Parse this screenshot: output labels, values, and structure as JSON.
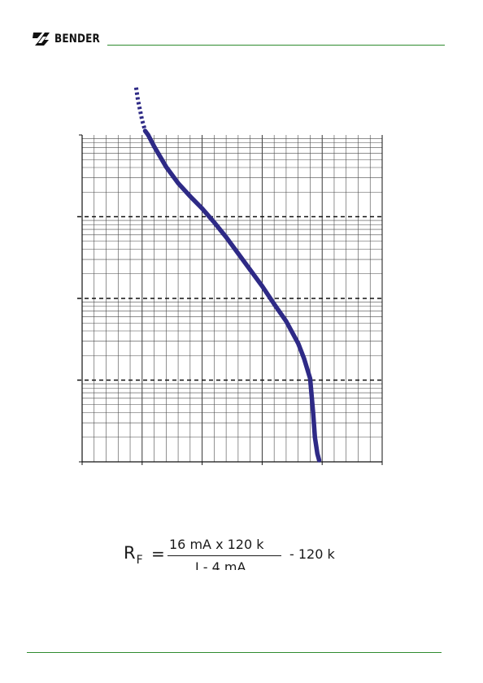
{
  "header": {
    "brand_name": "BENDER",
    "logo_icon": "bender-logo-icon",
    "rule_color": "#2e8b2e"
  },
  "chart_data": {
    "type": "line",
    "title": "",
    "xlabel": "",
    "ylabel": "",
    "x_scale": "linear",
    "y_scale": "log",
    "y_decades": 4,
    "x_major_ticks": 5,
    "grid": true,
    "dashed_decade_lines": true,
    "series": [
      {
        "color": "#2e2a86",
        "dotted_x_below": 1.15,
        "x": [
          0.9,
          0.93,
          1.0,
          1.05,
          1.1,
          1.2,
          1.4,
          1.6,
          1.8,
          2.0,
          2.2,
          2.4,
          2.6,
          2.8,
          3.0,
          3.2,
          3.4,
          3.6,
          3.7,
          3.8,
          3.85,
          3.88,
          3.92,
          3.95
        ],
        "y": [
          3.58,
          3.43,
          3.18,
          3.05,
          3.0,
          2.86,
          2.61,
          2.41,
          2.25,
          2.1,
          1.93,
          1.75,
          1.55,
          1.35,
          1.15,
          0.93,
          0.72,
          0.45,
          0.26,
          0.02,
          -0.4,
          -0.7,
          -0.9,
          -0.98
        ]
      }
    ]
  },
  "formula": {
    "lhs": "R",
    "lhs_sub": "F",
    "equals": "=",
    "numerator": "16 mA x 120 k",
    "denominator": "I - 4 mA",
    "tail": "- 120 k"
  },
  "footer": {
    "rule_color": "#2e8b2e"
  }
}
